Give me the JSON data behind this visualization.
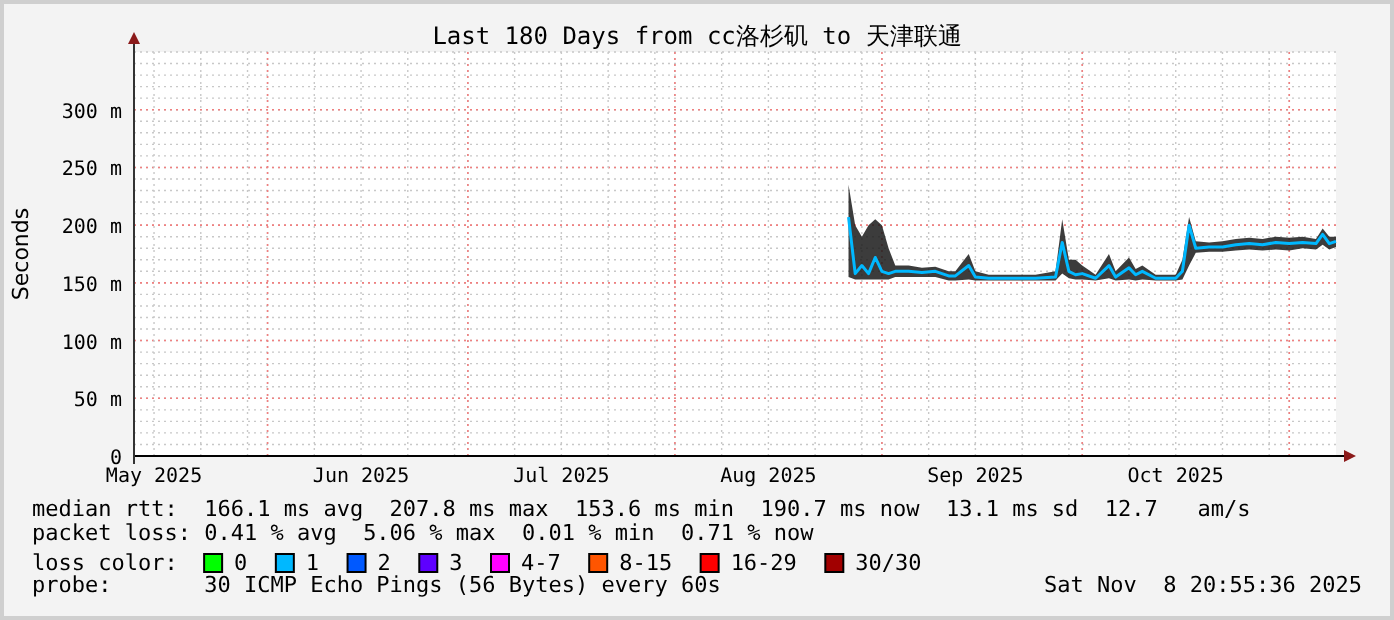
{
  "chart_data": {
    "type": "line",
    "title": "Last 180 Days from cc洛杉矶 to 天津联通",
    "ylabel": "Seconds",
    "legend_title": "loss color:",
    "legend": "bottom",
    "grid": true,
    "line_style": "solid",
    "marker": "none",
    "xlim": [
      "2025-05-12",
      "2025-11-08"
    ],
    "xticks": [
      {
        "value": "2025-05-15",
        "label": "May 2025"
      },
      {
        "value": "2025-06-15",
        "label": "Jun 2025"
      },
      {
        "value": "2025-07-15",
        "label": "Jul 2025"
      },
      {
        "value": "2025-08-15",
        "label": "Aug 2025"
      },
      {
        "value": "2025-09-15",
        "label": "Sep 2025"
      },
      {
        "value": "2025-10-15",
        "label": "Oct 2025"
      }
    ],
    "ylim": [
      0,
      350
    ],
    "yticks": [
      0,
      {
        "value": 50,
        "label": "50 m"
      },
      {
        "value": 100,
        "label": "100 m"
      },
      {
        "value": 150,
        "label": "150 m"
      },
      {
        "value": 200,
        "label": "200 m"
      },
      {
        "value": 250,
        "label": "250 m"
      },
      {
        "value": 300,
        "label": "300 m"
      }
    ],
    "x": [
      "2025-08-27",
      "2025-08-28",
      "2025-08-29",
      "2025-08-30",
      "2025-08-31",
      "2025-09-01",
      "2025-09-02",
      "2025-09-03",
      "2025-09-05",
      "2025-09-07",
      "2025-09-09",
      "2025-09-11",
      "2025-09-12",
      "2025-09-14",
      "2025-09-15",
      "2025-09-17",
      "2025-09-20",
      "2025-09-24",
      "2025-09-27",
      "2025-09-28",
      "2025-09-29",
      "2025-09-30",
      "2025-10-01",
      "2025-10-03",
      "2025-10-05",
      "2025-10-06",
      "2025-10-08",
      "2025-10-09",
      "2025-10-10",
      "2025-10-12",
      "2025-10-15",
      "2025-10-16",
      "2025-10-17",
      "2025-10-18",
      "2025-10-20",
      "2025-10-22",
      "2025-10-24",
      "2025-10-26",
      "2025-10-28",
      "2025-10-30",
      "2025-11-01",
      "2025-11-03",
      "2025-11-05",
      "2025-11-06",
      "2025-11-07",
      "2025-11-08"
    ],
    "series": [
      {
        "name": "0",
        "color": "#00ff00",
        "values": [
          null,
          null,
          null,
          null,
          null,
          null,
          null,
          null,
          null,
          null,
          null,
          null,
          null,
          null,
          null,
          null,
          null,
          null,
          null,
          null,
          null,
          null,
          null,
          null,
          null,
          null,
          null,
          null,
          null,
          null,
          null,
          null,
          null,
          null,
          null,
          null,
          null,
          null,
          null,
          null,
          null,
          null,
          null,
          null,
          null,
          null
        ]
      },
      {
        "name": "1",
        "color": "#00b8ff",
        "values": [
          207,
          158,
          165,
          158,
          172,
          160,
          158,
          160,
          160,
          159,
          160,
          156,
          156,
          165,
          155,
          154,
          154,
          154,
          155,
          185,
          160,
          157,
          158,
          154,
          165,
          155,
          163,
          157,
          160,
          154,
          154,
          160,
          200,
          180,
          181,
          181,
          183,
          184,
          183,
          185,
          184,
          185,
          184,
          192,
          184,
          186
        ],
        "lower": [
          155,
          153,
          153,
          153,
          153,
          153,
          153,
          155,
          155,
          155,
          155,
          152,
          152,
          153,
          152,
          152,
          152,
          152,
          152,
          158,
          154,
          153,
          153,
          152,
          154,
          152,
          153,
          152,
          153,
          152,
          152,
          153,
          165,
          176,
          177,
          177,
          178,
          179,
          178,
          179,
          178,
          180,
          179,
          183,
          179,
          181
        ],
        "upper": [
          235,
          200,
          190,
          200,
          205,
          200,
          180,
          165,
          165,
          163,
          164,
          160,
          160,
          175,
          160,
          157,
          157,
          157,
          160,
          205,
          170,
          170,
          165,
          157,
          175,
          160,
          172,
          162,
          165,
          157,
          157,
          170,
          207,
          186,
          185,
          186,
          188,
          189,
          188,
          190,
          189,
          190,
          188,
          197,
          190,
          190
        ]
      },
      {
        "name": "2",
        "color": "#0059ff",
        "values": [
          null,
          null,
          null,
          null,
          null,
          null,
          null,
          null,
          null,
          null,
          null,
          null,
          null,
          null,
          null,
          null,
          null,
          null,
          null,
          null,
          null,
          null,
          null,
          null,
          null,
          null,
          null,
          null,
          null,
          null,
          null,
          null,
          null,
          null,
          null,
          null,
          null,
          null,
          null,
          null,
          null,
          null,
          null,
          null,
          null,
          null
        ]
      },
      {
        "name": "3",
        "color": "#5e00ff",
        "values": [
          null,
          null,
          null,
          null,
          null,
          null,
          null,
          null,
          null,
          null,
          null,
          null,
          null,
          null,
          null,
          null,
          null,
          null,
          null,
          null,
          null,
          null,
          null,
          null,
          null,
          null,
          null,
          null,
          null,
          null,
          null,
          null,
          null,
          null,
          null,
          null,
          null,
          null,
          null,
          null,
          null,
          null,
          null,
          null,
          null,
          null
        ]
      },
      {
        "name": "4-7",
        "color": "#ff00ff",
        "values": [
          null,
          null,
          null,
          null,
          null,
          null,
          null,
          null,
          null,
          null,
          null,
          null,
          null,
          null,
          null,
          null,
          null,
          null,
          null,
          null,
          null,
          null,
          null,
          null,
          null,
          null,
          null,
          null,
          null,
          null,
          null,
          null,
          null,
          null,
          null,
          null,
          null,
          null,
          null,
          null,
          null,
          null,
          null,
          null,
          null,
          null
        ]
      },
      {
        "name": "8-15",
        "color": "#ff5500",
        "values": [
          null,
          null,
          null,
          null,
          null,
          null,
          null,
          null,
          null,
          null,
          null,
          null,
          null,
          null,
          null,
          null,
          null,
          null,
          null,
          null,
          null,
          null,
          null,
          null,
          null,
          null,
          null,
          null,
          null,
          null,
          null,
          null,
          null,
          null,
          null,
          null,
          null,
          null,
          null,
          null,
          null,
          null,
          null,
          null,
          null,
          null
        ]
      },
      {
        "name": "16-29",
        "color": "#ff0000",
        "values": [
          null,
          null,
          null,
          null,
          null,
          null,
          null,
          null,
          null,
          null,
          null,
          null,
          null,
          null,
          null,
          null,
          null,
          null,
          null,
          null,
          null,
          null,
          null,
          null,
          null,
          null,
          null,
          null,
          null,
          null,
          null,
          null,
          null,
          null,
          null,
          null,
          null,
          null,
          null,
          null,
          null,
          null,
          null,
          null,
          null,
          null
        ]
      },
      {
        "name": "30/30",
        "color": "#a10000",
        "values": [
          null,
          null,
          null,
          null,
          null,
          null,
          null,
          null,
          null,
          null,
          null,
          null,
          null,
          null,
          null,
          null,
          null,
          null,
          null,
          null,
          null,
          null,
          null,
          null,
          null,
          null,
          null,
          null,
          null,
          null,
          null,
          null,
          null,
          null,
          null,
          null,
          null,
          null,
          null,
          null,
          null,
          null,
          null,
          null,
          null,
          null
        ]
      }
    ],
    "annotations": [
      "median rtt:  166.1 ms avg  207.8 ms max  153.6 ms min  190.7 ms now  13.1 ms sd  12.7   am/s",
      "packet loss: 0.41 % avg  5.06 % max  0.01 % min  0.71 % now",
      "probe:       30 ICMP Echo Pings (56 Bytes) every 60s",
      "Sat Nov  8 20:55:36 2025"
    ]
  }
}
